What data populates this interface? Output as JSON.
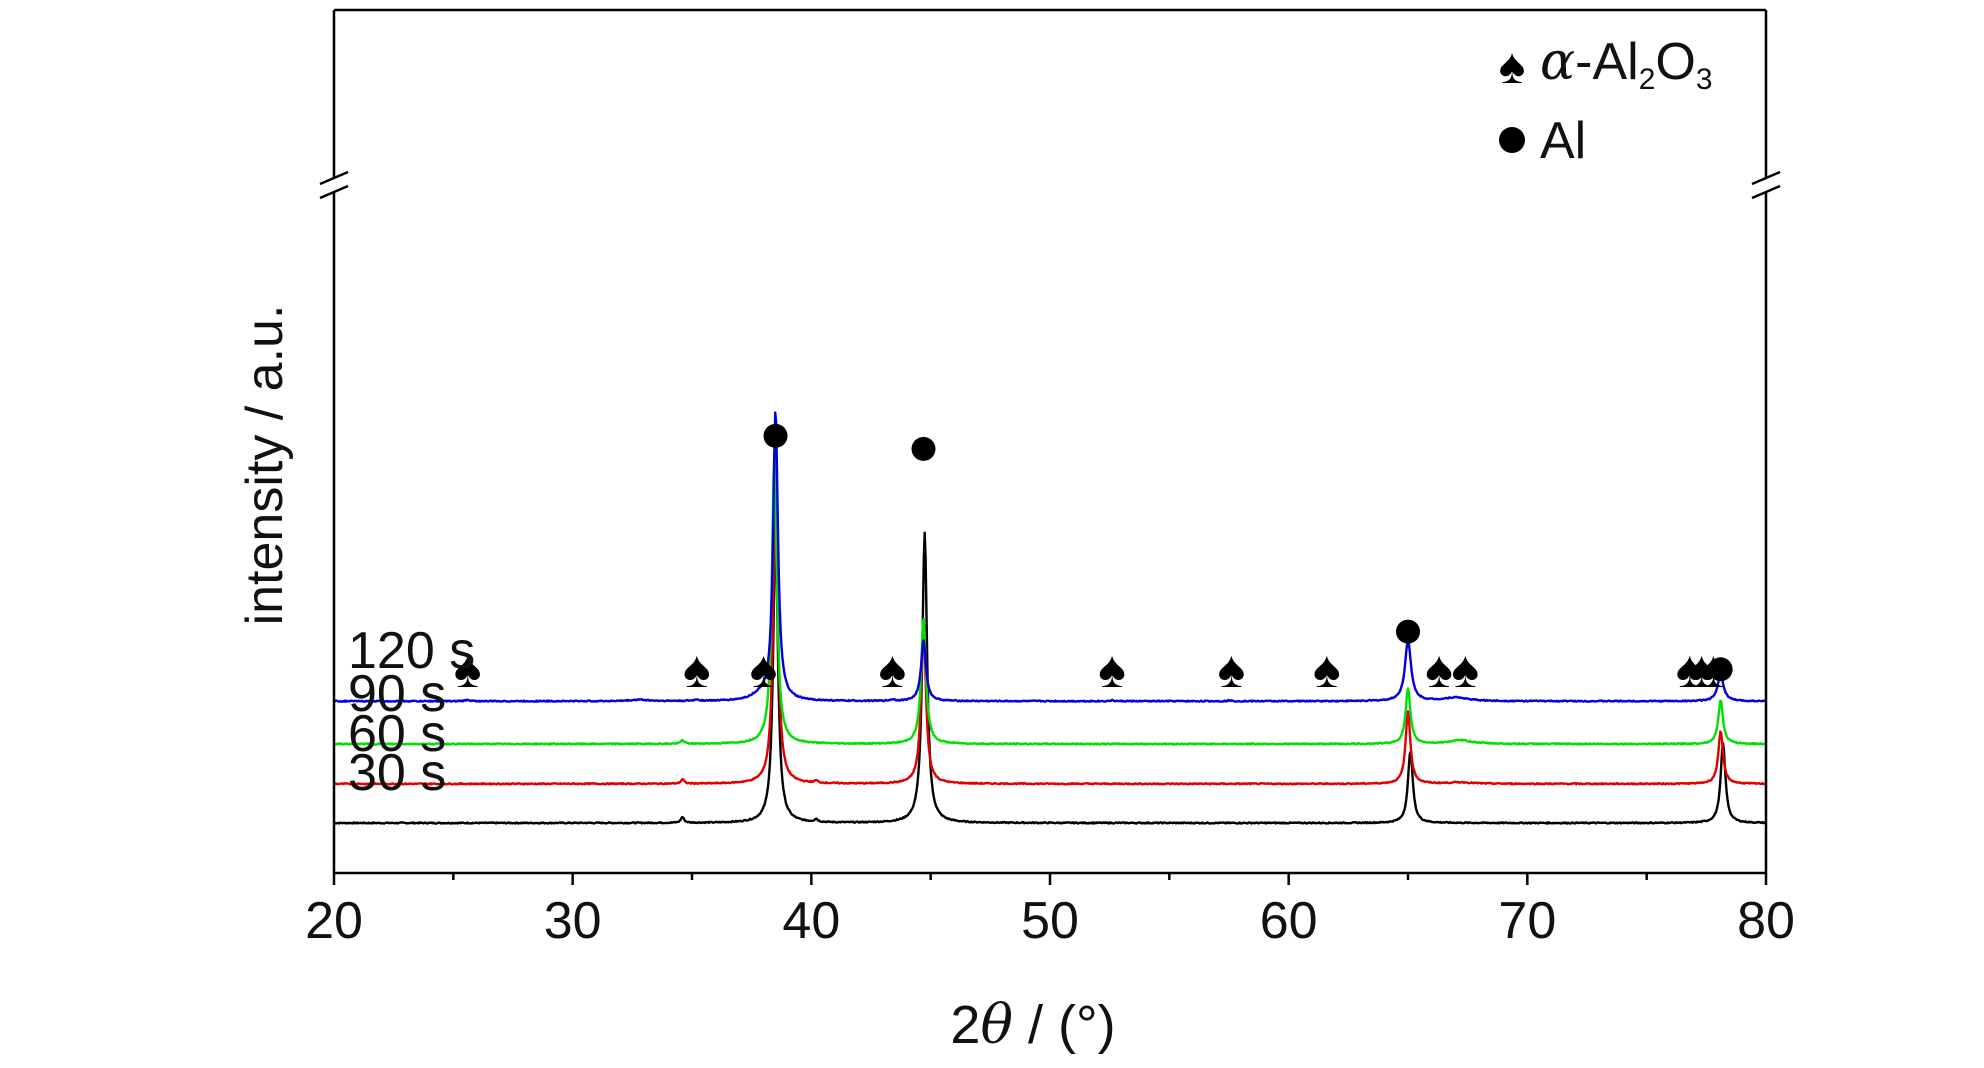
{
  "chart_data": {
    "type": "line",
    "xlabel_prefix": "2",
    "xlabel_symbol": "θ",
    "xlabel_suffix": " / (°)",
    "ylabel": "intensity / a.u.",
    "xlim": [
      20,
      80
    ],
    "x_ticks": [
      "20",
      "30",
      "40",
      "50",
      "60",
      "70",
      "80"
    ],
    "axis_break": true,
    "grid": false,
    "legend_position": "top-right",
    "legend": [
      {
        "marker": "spade",
        "prefix": "α",
        "text_main": "-Al",
        "sub1": "2",
        "text_mid": "O",
        "sub2": "3"
      },
      {
        "marker": "circle",
        "text": "Al"
      }
    ],
    "series": [
      {
        "name": "30 s",
        "color": "#000000",
        "baseline": 0.0,
        "peaks": [
          {
            "x": 34.6,
            "h": 0.04,
            "w": 0.08
          },
          {
            "x": 38.5,
            "h": 2.0,
            "w": 0.12
          },
          {
            "x": 40.2,
            "h": 0.02,
            "w": 0.08
          },
          {
            "x": 44.75,
            "h": 2.0,
            "w": 0.12
          },
          {
            "x": 65.1,
            "h": 0.5,
            "w": 0.12
          },
          {
            "x": 78.2,
            "h": 0.55,
            "w": 0.12
          }
        ]
      },
      {
        "name": "60 s",
        "color": "#e00000",
        "baseline": 0.27,
        "peaks": [
          {
            "x": 34.6,
            "h": 0.03,
            "w": 0.08
          },
          {
            "x": 38.5,
            "h": 2.0,
            "w": 0.12
          },
          {
            "x": 40.2,
            "h": 0.015,
            "w": 0.08
          },
          {
            "x": 44.7,
            "h": 1.11,
            "w": 0.12
          },
          {
            "x": 65.0,
            "h": 0.5,
            "w": 0.12
          },
          {
            "x": 67.2,
            "h": 0.01,
            "w": 0.6
          },
          {
            "x": 78.1,
            "h": 0.36,
            "w": 0.12
          }
        ]
      },
      {
        "name": "90 s",
        "color": "#00e000",
        "baseline": 0.545,
        "peaks": [
          {
            "x": 34.6,
            "h": 0.025,
            "w": 0.08
          },
          {
            "x": 38.45,
            "h": 2.0,
            "w": 0.12
          },
          {
            "x": 44.7,
            "h": 0.87,
            "w": 0.12
          },
          {
            "x": 65.0,
            "h": 0.38,
            "w": 0.12
          },
          {
            "x": 67.2,
            "h": 0.025,
            "w": 0.6
          },
          {
            "x": 78.1,
            "h": 0.3,
            "w": 0.12
          }
        ]
      },
      {
        "name": "120 s",
        "color": "#0000e0",
        "baseline": 0.84,
        "peaks": [
          {
            "x": 25.6,
            "h": 0.01,
            "w": 0.1
          },
          {
            "x": 32.8,
            "h": 0.01,
            "w": 0.4
          },
          {
            "x": 35.2,
            "h": 0.01,
            "w": 0.1
          },
          {
            "x": 37.8,
            "h": 0.03,
            "w": 0.4
          },
          {
            "x": 38.5,
            "h": 2.0,
            "w": 0.12
          },
          {
            "x": 43.4,
            "h": 0.01,
            "w": 0.1
          },
          {
            "x": 44.7,
            "h": 0.42,
            "w": 0.12
          },
          {
            "x": 52.6,
            "h": 0.005,
            "w": 0.1
          },
          {
            "x": 57.5,
            "h": 0.005,
            "w": 0.1
          },
          {
            "x": 65.0,
            "h": 0.42,
            "w": 0.15
          },
          {
            "x": 67.0,
            "h": 0.025,
            "w": 0.6
          },
          {
            "x": 78.1,
            "h": 0.18,
            "w": 0.15
          }
        ]
      }
    ],
    "annotations": {
      "alumina_spades_x": [
        25.6,
        35.2,
        38.0,
        43.4,
        52.6,
        57.6,
        61.6,
        66.3,
        67.4,
        76.8,
        77.3,
        77.8
      ],
      "al_circles": [
        {
          "x": 38.5,
          "y": 2.67
        },
        {
          "x": 44.7,
          "y": 2.58
        },
        {
          "x": 65.0,
          "y": 1.32
        },
        {
          "x": 78.1,
          "y": 1.06
        }
      ]
    }
  }
}
